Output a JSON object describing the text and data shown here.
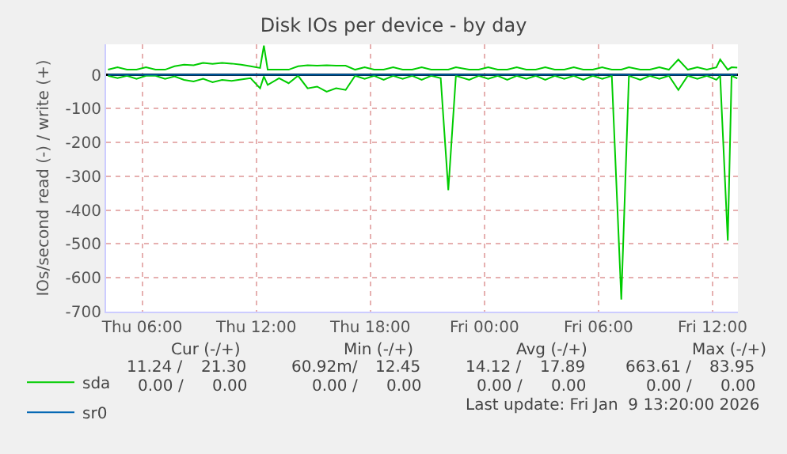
{
  "chart_data": {
    "type": "line",
    "title": "Disk IOs per device - by day",
    "ylabel": "IOs/second read (-) / write (+)",
    "x": [
      "2026-01-08T04:12",
      "2026-01-08T04:42",
      "2026-01-08T05:12",
      "2026-01-08T05:42",
      "2026-01-08T06:12",
      "2026-01-08T06:42",
      "2026-01-08T07:12",
      "2026-01-08T07:42",
      "2026-01-08T08:12",
      "2026-01-08T08:42",
      "2026-01-08T09:12",
      "2026-01-08T09:42",
      "2026-01-08T10:12",
      "2026-01-08T10:42",
      "2026-01-08T11:12",
      "2026-01-08T11:42",
      "2026-01-08T12:12",
      "2026-01-08T12:24",
      "2026-01-08T12:36",
      "2026-01-08T13:12",
      "2026-01-08T13:42",
      "2026-01-08T14:12",
      "2026-01-08T14:42",
      "2026-01-08T15:12",
      "2026-01-08T15:42",
      "2026-01-08T16:12",
      "2026-01-08T16:42",
      "2026-01-08T17:12",
      "2026-01-08T17:42",
      "2026-01-08T18:12",
      "2026-01-08T18:42",
      "2026-01-08T19:12",
      "2026-01-08T19:42",
      "2026-01-08T20:12",
      "2026-01-08T20:42",
      "2026-01-08T21:12",
      "2026-01-08T21:42",
      "2026-01-08T22:06",
      "2026-01-08T22:30",
      "2026-01-08T23:12",
      "2026-01-08T23:42",
      "2026-01-09T00:12",
      "2026-01-09T00:42",
      "2026-01-09T01:12",
      "2026-01-09T01:42",
      "2026-01-09T02:12",
      "2026-01-09T02:42",
      "2026-01-09T03:12",
      "2026-01-09T03:42",
      "2026-01-09T04:12",
      "2026-01-09T04:42",
      "2026-01-09T05:12",
      "2026-01-09T05:42",
      "2026-01-09T06:12",
      "2026-01-09T06:42",
      "2026-01-09T07:12",
      "2026-01-09T07:36",
      "2026-01-09T08:12",
      "2026-01-09T08:42",
      "2026-01-09T09:12",
      "2026-01-09T09:42",
      "2026-01-09T10:12",
      "2026-01-09T10:42",
      "2026-01-09T11:12",
      "2026-01-09T11:42",
      "2026-01-09T12:12",
      "2026-01-09T12:24",
      "2026-01-09T12:48",
      "2026-01-09T13:00",
      "2026-01-09T13:18"
    ],
    "series": [
      {
        "name": "sda",
        "color": "#00cc00",
        "values": [
          15,
          22,
          15,
          15,
          22,
          15,
          15,
          25,
          30,
          28,
          35,
          32,
          35,
          33,
          30,
          25,
          20,
          86,
          15,
          15,
          15,
          25,
          28,
          27,
          28,
          27,
          27,
          15,
          22,
          15,
          15,
          22,
          15,
          15,
          22,
          15,
          15,
          15,
          22,
          15,
          15,
          22,
          15,
          15,
          22,
          15,
          15,
          22,
          15,
          15,
          22,
          15,
          15,
          22,
          15,
          15,
          22,
          15,
          15,
          22,
          15,
          45,
          15,
          22,
          15,
          22,
          45,
          15,
          22,
          21
        ]
      },
      {
        "color": "#00cc00",
        "values": [
          -3,
          -10,
          -3,
          -12,
          -3,
          -3,
          -12,
          -5,
          -15,
          -20,
          -12,
          -22,
          -15,
          -18,
          -14,
          -10,
          -40,
          -5,
          -30,
          -10,
          -25,
          -3,
          -40,
          -35,
          -50,
          -40,
          -45,
          -3,
          -12,
          -3,
          -15,
          -3,
          -12,
          -3,
          -15,
          -3,
          -10,
          -341,
          -3,
          -15,
          -3,
          -12,
          -3,
          -15,
          -3,
          -12,
          -3,
          -15,
          -3,
          -12,
          -3,
          -15,
          -3,
          -12,
          -3,
          -664,
          -3,
          -15,
          -3,
          -12,
          -3,
          -45,
          -3,
          -12,
          -3,
          -15,
          -3,
          -490,
          -3,
          -11
        ]
      },
      {
        "name": "sr0",
        "color": "#0066b3",
        "values": [
          0,
          0,
          0,
          0,
          0,
          0,
          0,
          0,
          0,
          0,
          0,
          0,
          0,
          0,
          0,
          0,
          0,
          0,
          0,
          0,
          0,
          0,
          0,
          0,
          0,
          0,
          0,
          0,
          0,
          0,
          0,
          0,
          0,
          0,
          0,
          0,
          0,
          0,
          0,
          0,
          0,
          0,
          0,
          0,
          0,
          0,
          0,
          0,
          0,
          0,
          0,
          0,
          0,
          0,
          0,
          0,
          0,
          0,
          0,
          0,
          0,
          0,
          0,
          0,
          0,
          0,
          0,
          0,
          0,
          0
        ]
      }
    ],
    "xlim": [
      "2026-01-08T04:06",
      "2026-01-09T13:20"
    ],
    "ylim": [
      -700,
      90
    ],
    "xticks": [
      {
        "value": "2026-01-08T06:00",
        "label": "Thu 06:00"
      },
      {
        "value": "2026-01-08T12:00",
        "label": "Thu 12:00"
      },
      {
        "value": "2026-01-08T18:00",
        "label": "Thu 18:00"
      },
      {
        "value": "2026-01-09T00:00",
        "label": "Fri 00:00"
      },
      {
        "value": "2026-01-09T06:00",
        "label": "Fri 06:00"
      },
      {
        "value": "2026-01-09T12:00",
        "label": "Fri 12:00"
      }
    ],
    "yticks": [
      -700,
      -600,
      -500,
      -400,
      -300,
      -200,
      -100,
      0
    ],
    "grid": true,
    "legend": "bottom left",
    "marker": "none",
    "line_style": "solid",
    "annotations": [
      "Cur (-/+)",
      "Min (-/+)",
      "Avg (-/+)",
      "Max (-/+)",
      "11.24 /",
      "21.30",
      "60.92m/",
      "12.45",
      "14.12 /",
      "17.89",
      "663.61 /",
      "83.95",
      "0.00 /",
      "0.00",
      "0.00 /",
      "0.00",
      "0.00 /",
      "0.00",
      "0.00 /",
      "0.00",
      "Last update: Fri Jan  9 13:20:00 2026"
    ]
  }
}
